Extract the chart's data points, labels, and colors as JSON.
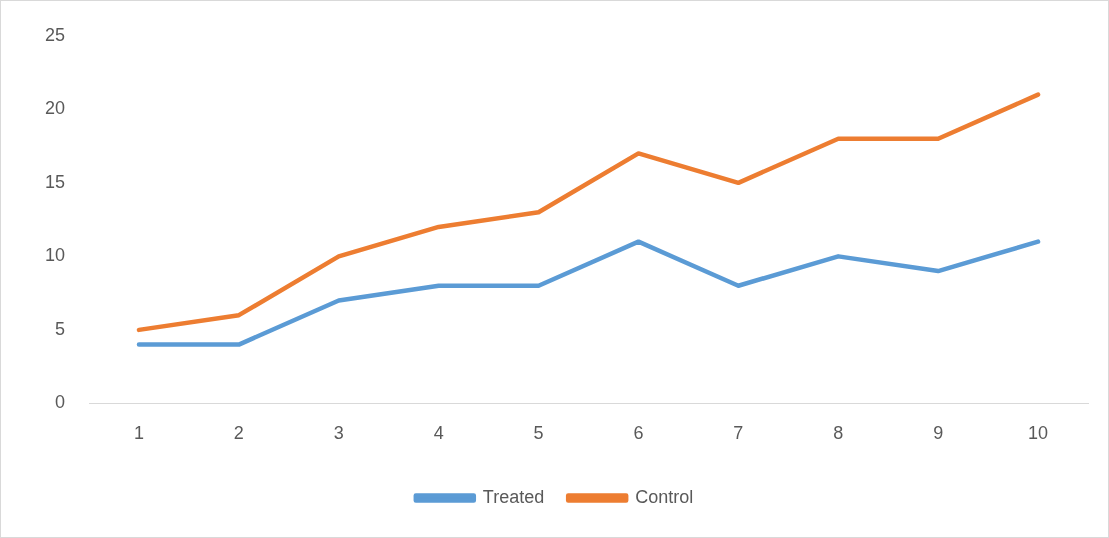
{
  "chart_data": {
    "type": "line",
    "categories": [
      "1",
      "2",
      "3",
      "4",
      "5",
      "6",
      "7",
      "8",
      "9",
      "10"
    ],
    "series": [
      {
        "name": "Treated",
        "color": "#5b9bd5",
        "values": [
          4,
          4,
          7,
          8,
          8,
          11,
          8,
          10,
          9,
          11
        ]
      },
      {
        "name": "Control",
        "color": "#ed7d31",
        "values": [
          5,
          6,
          10,
          12,
          13,
          17,
          15,
          18,
          18,
          21
        ]
      }
    ],
    "ylim": [
      0,
      25
    ],
    "yticks": [
      0,
      5,
      10,
      15,
      20,
      25
    ],
    "grid": false,
    "legend": "bottom",
    "marker": "none",
    "line_style": "solid"
  }
}
